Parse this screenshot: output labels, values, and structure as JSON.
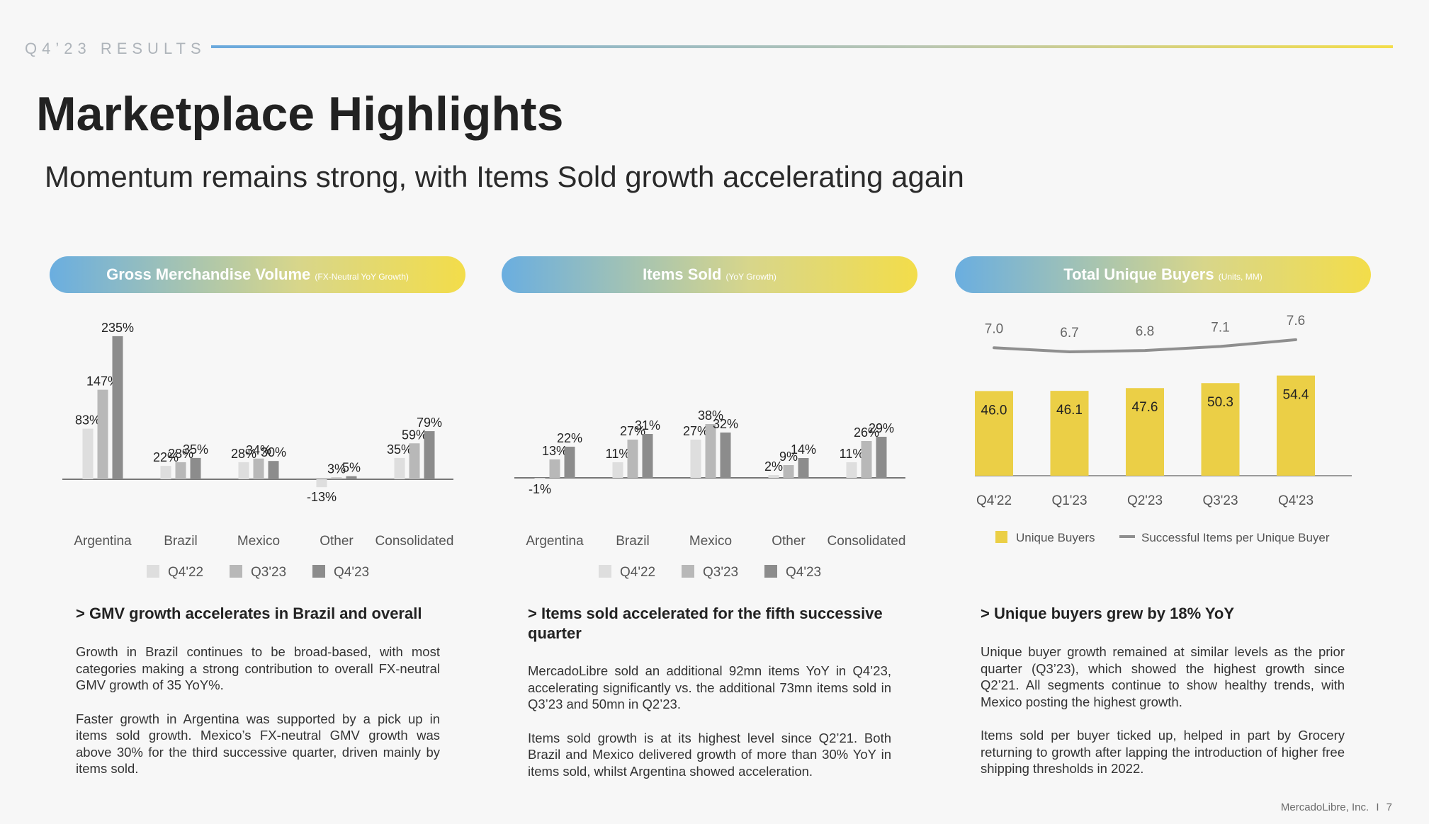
{
  "header": {
    "kicker": "Q4’23 RESULTS",
    "title": "Marketplace Highlights",
    "subtitle": "Momentum remains strong, with Items Sold growth accelerating again"
  },
  "colors": {
    "q4_22": "#dedede",
    "q3_23": "#b8b8b8",
    "q4_23": "#8c8c8c",
    "buyers_bar": "#ebcf46",
    "line": "#8f8f8f"
  },
  "panels": [
    {
      "title": "Gross Merchandise Volume",
      "title_note": "(FX-Neutral YoY Growth)",
      "headline": "> GMV growth accelerates in Brazil and overall",
      "paragraphs": [
        "Growth in Brazil continues to be broad-based, with most categories making a strong contribution to overall FX-neutral GMV growth of 35 YoY%.",
        "Faster growth in Argentina was supported by a pick up in items sold growth. Mexico’s FX-neutral GMV growth was above 30% for the third successive quarter, driven mainly by items sold."
      ]
    },
    {
      "title": "Items Sold",
      "title_note": "(YoY Growth)",
      "headline": "> Items sold accelerated for the fifth successive quarter",
      "paragraphs": [
        "MercadoLibre sold an additional 92mn items YoY in Q4’23, accelerating significantly vs. the additional 73mn items sold in Q3’23 and 50mn in Q2’23.",
        "Items sold growth is at its highest level since Q2’21. Both Brazil and Mexico delivered growth of more than 30% YoY in items sold, whilst Argentina showed acceleration."
      ]
    },
    {
      "title": "Total Unique Buyers",
      "title_note": "(Units, MM)",
      "headline": "> Unique buyers grew by 18% YoY",
      "paragraphs": [
        "Unique buyer growth remained at similar levels as the prior quarter (Q3’23), which showed the highest growth since Q2’21. All segments continue to show healthy trends, with Mexico posting the highest growth.",
        "Items sold per buyer ticked up, helped in part by Grocery returning to growth after lapping the introduction of higher free shipping thresholds in 2022."
      ]
    }
  ],
  "chart_data": [
    {
      "type": "bar",
      "categories": [
        "Argentina",
        "Brazil",
        "Mexico",
        "Other",
        "Consolidated"
      ],
      "series": [
        {
          "name": "Q4'22",
          "values": [
            83,
            22,
            28,
            -13,
            35
          ],
          "labels": [
            "83%",
            "22%",
            "28%",
            "-13%",
            "35%"
          ]
        },
        {
          "name": "Q3'23",
          "values": [
            147,
            28,
            34,
            3,
            59
          ],
          "labels": [
            "147%",
            "28%",
            "34%",
            "3%",
            "59%"
          ]
        },
        {
          "name": "Q4'23",
          "values": [
            235,
            35,
            30,
            5,
            79
          ],
          "labels": [
            "235%",
            "35%",
            "30%",
            "5%",
            "79%"
          ]
        }
      ],
      "ylim": [
        -20,
        240
      ],
      "legend": "bottom",
      "grid": false
    },
    {
      "type": "bar",
      "categories": [
        "Argentina",
        "Brazil",
        "Mexico",
        "Other",
        "Consolidated"
      ],
      "series": [
        {
          "name": "Q4'22",
          "values": [
            -1,
            11,
            27,
            2,
            11
          ],
          "labels": [
            "-1%",
            "11%",
            "27%",
            "2%",
            "11%"
          ]
        },
        {
          "name": "Q3'23",
          "values": [
            13,
            27,
            38,
            9,
            26
          ],
          "labels": [
            "13%",
            "27%",
            "38%",
            "9%",
            "26%"
          ]
        },
        {
          "name": "Q4'23",
          "values": [
            22,
            31,
            32,
            14,
            29
          ],
          "labels": [
            "22%",
            "31%",
            "32%",
            "14%",
            "29%"
          ]
        }
      ],
      "ylim": [
        -5,
        45
      ],
      "legend": "bottom",
      "grid": false
    },
    {
      "type": "bar",
      "categories": [
        "Q4'22",
        "Q1'23",
        "Q2'23",
        "Q3'23",
        "Q4'23"
      ],
      "series": [
        {
          "name": "Unique Buyers",
          "type": "bar",
          "values": [
            46.0,
            46.1,
            47.6,
            50.3,
            54.4
          ],
          "labels": [
            "46.0",
            "46.1",
            "47.6",
            "50.3",
            "54.4"
          ]
        },
        {
          "name": "Successful Items per Unique Buyer",
          "type": "line",
          "values": [
            7.0,
            6.7,
            6.8,
            7.1,
            7.6
          ],
          "labels": [
            "7.0",
            "6.7",
            "6.8",
            "7.1",
            "7.6"
          ]
        }
      ],
      "ylim": [
        0,
        60
      ],
      "legend": "bottom",
      "grid": false
    }
  ],
  "footer": {
    "company": "MercadoLibre, Inc.",
    "separator": "I",
    "page": "7"
  }
}
